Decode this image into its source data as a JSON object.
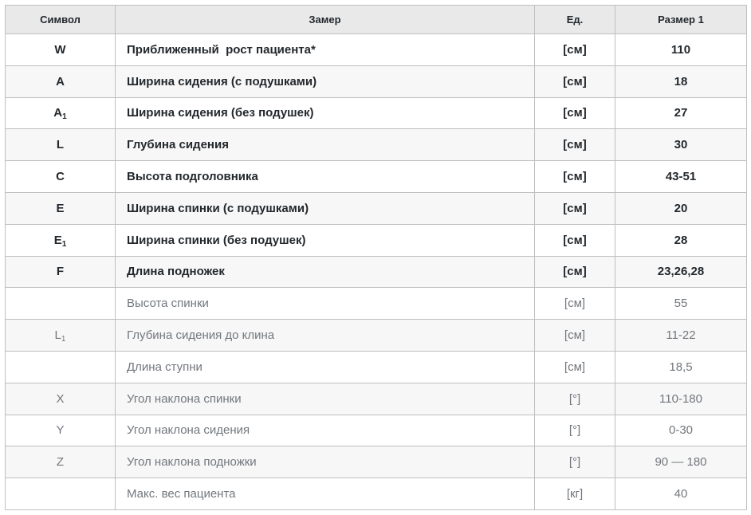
{
  "table": {
    "headers": [
      {
        "label": "Символ"
      },
      {
        "label": "Замер"
      },
      {
        "label": "Ед."
      },
      {
        "label": "Размер 1"
      }
    ],
    "rows": [
      {
        "symbol": "W",
        "symbol_sub": "",
        "measure": "Приближенный  рост пациента*",
        "unit": "[см]",
        "value": "110",
        "emphasis": true
      },
      {
        "symbol": "A",
        "symbol_sub": "",
        "measure": "Ширина сидения (с подушками)",
        "unit": "[см]",
        "value": "18",
        "emphasis": true
      },
      {
        "symbol": "A",
        "symbol_sub": "1",
        "measure": "Ширина сидения (без подушек)",
        "unit": "[см]",
        "value": "27",
        "emphasis": true
      },
      {
        "symbol": "L",
        "symbol_sub": "",
        "measure": "Глубина сидения",
        "unit": "[см]",
        "value": "30",
        "emphasis": true
      },
      {
        "symbol": "C",
        "symbol_sub": "",
        "measure": "Высота подголовника",
        "unit": "[см]",
        "value": "43-51",
        "emphasis": true
      },
      {
        "symbol": "E",
        "symbol_sub": "",
        "measure": "Ширина спинки (с подушками)",
        "unit": "[см]",
        "value": "20",
        "emphasis": true
      },
      {
        "symbol": "E",
        "symbol_sub": "1",
        "measure": "Ширина спинки (без подушек)",
        "unit": "[см]",
        "value": "28",
        "emphasis": true
      },
      {
        "symbol": "F",
        "symbol_sub": "",
        "measure": "Длина подножек",
        "unit": "[см]",
        "value": "23,26,28",
        "emphasis": true
      },
      {
        "symbol": "",
        "symbol_sub": "",
        "measure": "Высота спинки",
        "unit": "[см]",
        "value": "55",
        "emphasis": false
      },
      {
        "symbol": "L",
        "symbol_sub": "1",
        "measure": "Глубина сидения до клина",
        "unit": "[см]",
        "value": "11-22",
        "emphasis": false
      },
      {
        "symbol": "",
        "symbol_sub": "",
        "measure": "Длина ступни",
        "unit": "[см]",
        "value": "18,5",
        "emphasis": false
      },
      {
        "symbol": "X",
        "symbol_sub": "",
        "measure": "Угол наклона спинки",
        "unit": "[°]",
        "value": "110-180",
        "emphasis": false
      },
      {
        "symbol": "Y",
        "symbol_sub": "",
        "measure": "Угол наклона сидения",
        "unit": "[°]",
        "value": "0-30",
        "emphasis": false
      },
      {
        "symbol": "Z",
        "symbol_sub": "",
        "measure": "Угол наклона подножки",
        "unit": "[°]",
        "value": "90 — 180",
        "emphasis": false
      },
      {
        "symbol": "",
        "symbol_sub": "",
        "measure": "Макс. вес пациента",
        "unit": "[кг]",
        "value": "40",
        "emphasis": false
      }
    ]
  },
  "colors": {
    "header_bg": "#e9e9e9",
    "alt_row_bg": "#f7f7f7",
    "row_bg": "#ffffff",
    "border_inner": "#bfbfbf",
    "border_outer": "#a3a3a3",
    "text_emphasis": "#23282d",
    "text_plain": "#72777d"
  }
}
